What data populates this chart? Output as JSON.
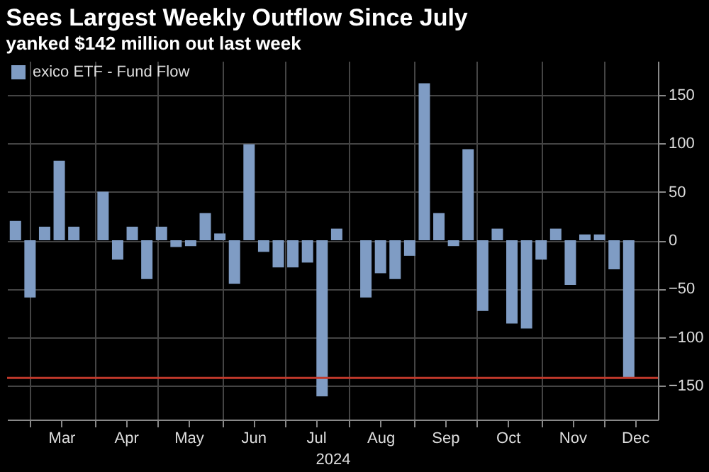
{
  "chart_data": {
    "type": "bar",
    "title": "Sees Largest Weekly Outflow Since July",
    "subtitle": "yanked $142 million out last week",
    "xlabel": "2024",
    "x": [
      "2024-02-23",
      "2024-03-01",
      "2024-03-08",
      "2024-03-15",
      "2024-03-22",
      "2024-03-29",
      "2024-04-05",
      "2024-04-12",
      "2024-04-19",
      "2024-04-26",
      "2024-05-03",
      "2024-05-10",
      "2024-05-17",
      "2024-05-24",
      "2024-05-31",
      "2024-06-07",
      "2024-06-14",
      "2024-06-21",
      "2024-06-28",
      "2024-07-05",
      "2024-07-12",
      "2024-07-19",
      "2024-07-26",
      "2024-08-02",
      "2024-08-09",
      "2024-08-16",
      "2024-08-23",
      "2024-08-30",
      "2024-09-06",
      "2024-09-13",
      "2024-09-20",
      "2024-09-27",
      "2024-10-04",
      "2024-10-11",
      "2024-10-18",
      "2024-10-25",
      "2024-11-01",
      "2024-11-08",
      "2024-11-15",
      "2024-11-22",
      "2024-11-29",
      "2024-12-06",
      "2024-12-13"
    ],
    "series": [
      {
        "name": "exico ETF - Fund Flow",
        "color": "#7f9cc4",
        "values": [
          20,
          -59,
          14,
          82,
          14,
          0,
          50,
          -20,
          14,
          -40,
          14,
          -7,
          -6,
          28,
          7,
          -45,
          99,
          -12,
          -28,
          -28,
          -23,
          -161,
          12,
          null,
          -59,
          -34,
          -40,
          -16,
          162,
          28,
          -6,
          94,
          -73,
          12,
          -86,
          -91,
          -20,
          12,
          -46,
          6,
          6,
          -30,
          -142
        ]
      }
    ],
    "xlim": [
      "2024-02-19",
      "2024-12-27"
    ],
    "xticks": [
      {
        "value": "2024-03-01",
        "label": null
      },
      {
        "value": "2024-03-16",
        "label": "Mar"
      },
      {
        "value": "2024-04-01",
        "label": null
      },
      {
        "value": "2024-04-16",
        "label": "Apr"
      },
      {
        "value": "2024-05-01",
        "label": null
      },
      {
        "value": "2024-05-16",
        "label": "May"
      },
      {
        "value": "2024-06-01",
        "label": null
      },
      {
        "value": "2024-06-16",
        "label": "Jun"
      },
      {
        "value": "2024-07-01",
        "label": null
      },
      {
        "value": "2024-07-16",
        "label": "Jul"
      },
      {
        "value": "2024-08-01",
        "label": null
      },
      {
        "value": "2024-08-16",
        "label": "Aug"
      },
      {
        "value": "2024-09-01",
        "label": null
      },
      {
        "value": "2024-09-16",
        "label": "Sep"
      },
      {
        "value": "2024-10-01",
        "label": null
      },
      {
        "value": "2024-10-16",
        "label": "Oct"
      },
      {
        "value": "2024-11-01",
        "label": null
      },
      {
        "value": "2024-11-16",
        "label": "Nov"
      },
      {
        "value": "2024-12-01",
        "label": null
      },
      {
        "value": "2024-12-16",
        "label": "Dec"
      }
    ],
    "ylim": [
      -185,
      185
    ],
    "yticks": [
      -150,
      -100,
      -50,
      0,
      50,
      100,
      150
    ],
    "ref_lines": [
      {
        "axis": "y",
        "value": -142,
        "label": null,
        "color": "#c0392b"
      }
    ],
    "grid": true,
    "legend": "top left"
  }
}
